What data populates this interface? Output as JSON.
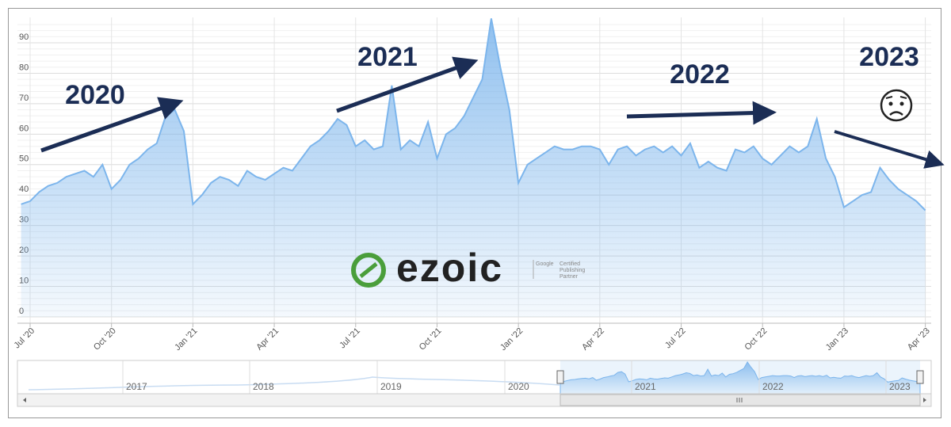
{
  "chart_data": {
    "type": "area",
    "categories": [
      null,
      "Jul '20",
      null,
      null,
      null,
      null,
      null,
      null,
      null,
      null,
      "Oct '20",
      null,
      null,
      null,
      null,
      null,
      null,
      null,
      null,
      "Jan '21",
      null,
      null,
      null,
      null,
      null,
      null,
      null,
      null,
      "Apr '21",
      null,
      null,
      null,
      null,
      null,
      null,
      null,
      null,
      "Jul '21",
      null,
      null,
      null,
      null,
      null,
      null,
      null,
      null,
      "Oct '21",
      null,
      null,
      null,
      null,
      null,
      null,
      null,
      null,
      "Jan '22",
      null,
      null,
      null,
      null,
      null,
      null,
      null,
      null,
      "Apr '22",
      null,
      null,
      null,
      null,
      null,
      null,
      null,
      null,
      "Jul '22",
      null,
      null,
      null,
      null,
      null,
      null,
      null,
      null,
      "Oct '22",
      null,
      null,
      null,
      null,
      null,
      null,
      null,
      null,
      "Jan '23",
      null,
      null,
      null,
      null,
      null,
      null,
      null,
      null,
      "Apr '23"
    ],
    "values": [
      37,
      38,
      41,
      43,
      44,
      46,
      47,
      48,
      46,
      50,
      42,
      45,
      50,
      52,
      55,
      57,
      66,
      68,
      61,
      37,
      40,
      44,
      46,
      45,
      43,
      48,
      46,
      45,
      47,
      49,
      48,
      52,
      56,
      58,
      61,
      65,
      63,
      56,
      58,
      55,
      56,
      76,
      55,
      58,
      56,
      64,
      52,
      60,
      62,
      66,
      72,
      78,
      98,
      82,
      68,
      44,
      50,
      52,
      54,
      56,
      55,
      55,
      56,
      56,
      55,
      50,
      55,
      56,
      53,
      55,
      56,
      54,
      56,
      53,
      57,
      49,
      51,
      49,
      48,
      55,
      54,
      56,
      52,
      50,
      53,
      56,
      54,
      56,
      65,
      52,
      46,
      36,
      38,
      40,
      41,
      49,
      45,
      42,
      40,
      38,
      35
    ],
    "color": "#7cb5ec",
    "ylim": [
      0,
      98
    ],
    "yticks": [
      0,
      10,
      20,
      30,
      40,
      50,
      60,
      70,
      80,
      90
    ],
    "grid": true,
    "annotations": [
      "2020",
      "2021",
      "2022",
      "2023"
    ],
    "navigator": {
      "labels": [
        "2017",
        "2018",
        "2019",
        "2020",
        "2021",
        "2022",
        "2023"
      ]
    }
  },
  "watermark": {
    "brand": "ezoic",
    "badge": [
      "Google",
      "Certified",
      "Publishing",
      "Partner"
    ]
  }
}
